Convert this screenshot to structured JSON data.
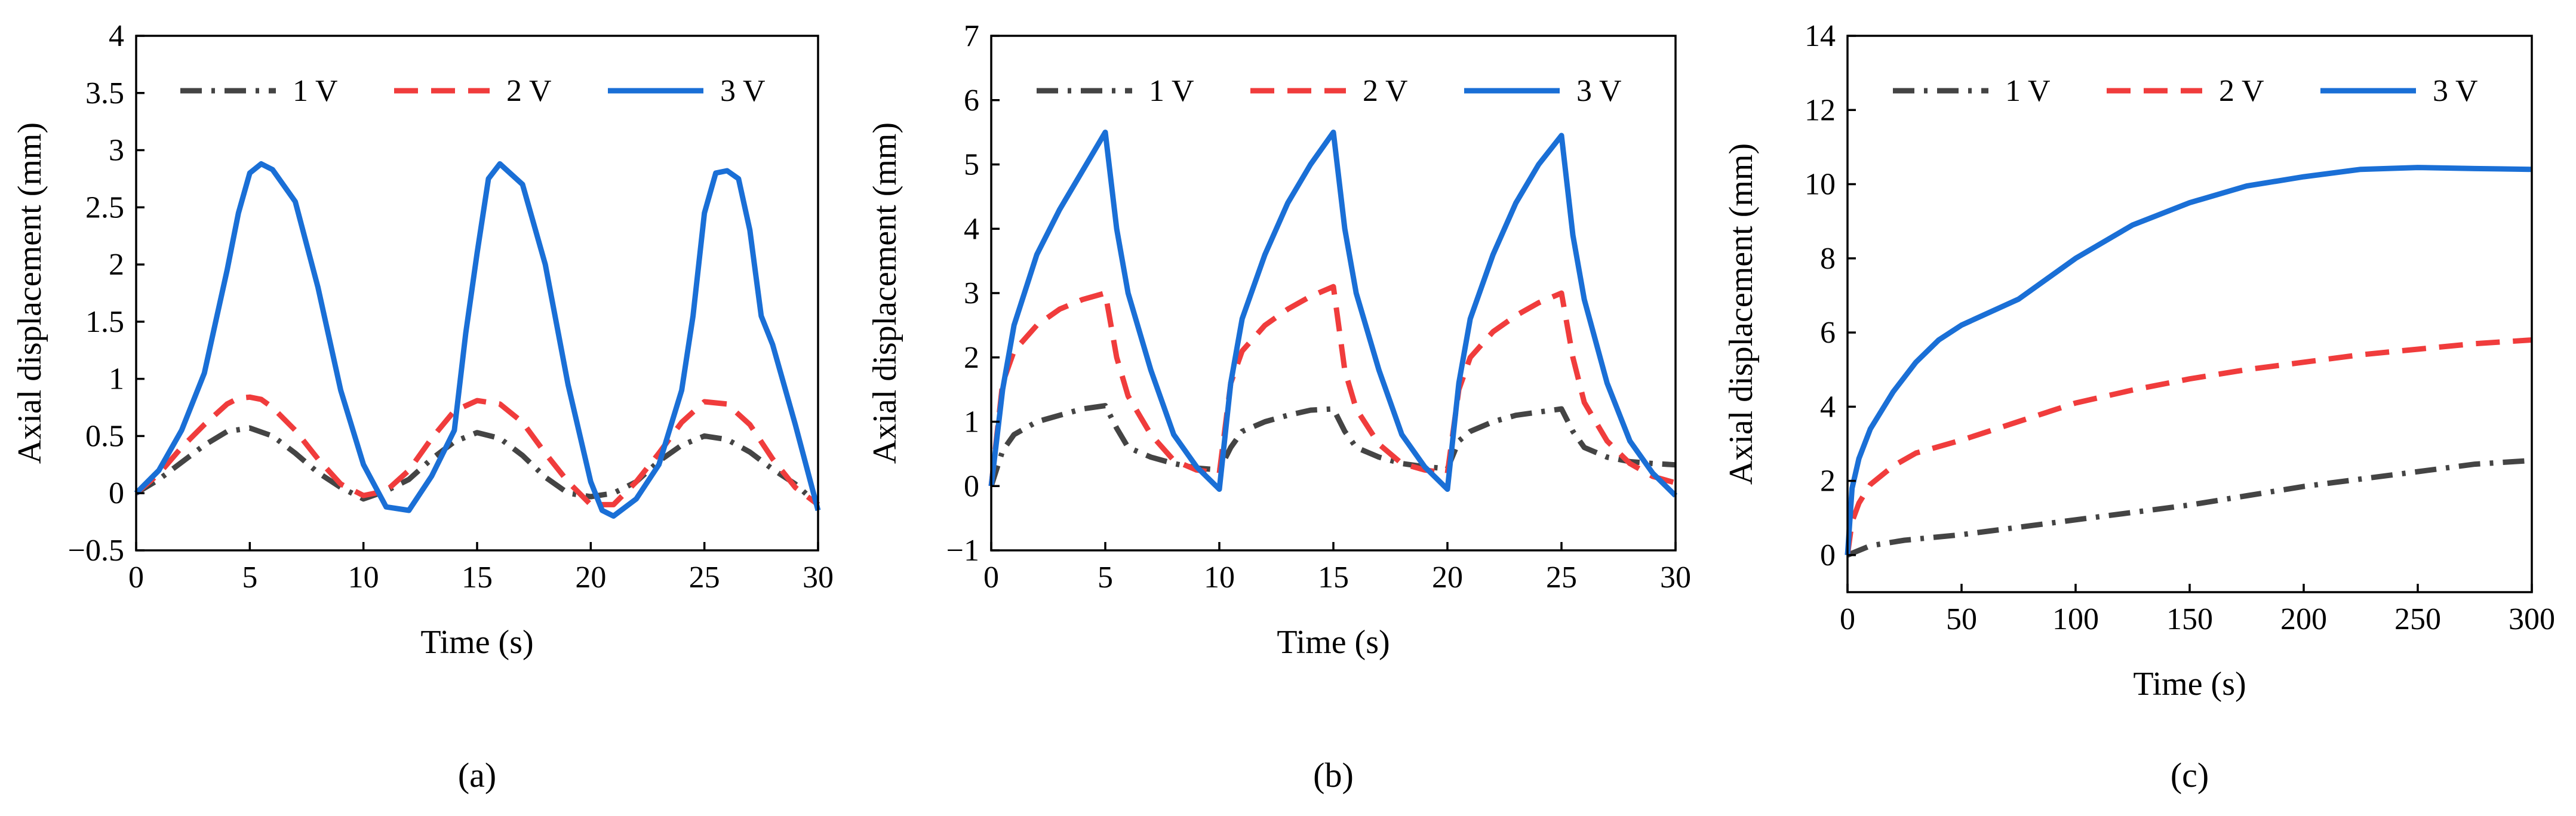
{
  "chart_data": [
    {
      "type": "line",
      "panel": "a",
      "caption": "(a)",
      "xlabel": "Time (s)",
      "ylabel": "Axial displacement (mm)",
      "xlim": [
        0,
        30
      ],
      "ylim": [
        -0.5,
        4
      ],
      "xticks": [
        0,
        5,
        10,
        15,
        20,
        25,
        30
      ],
      "yticks": [
        -0.5,
        0,
        0.5,
        1,
        1.5,
        2,
        2.5,
        3,
        3.5,
        4
      ],
      "ytick_labels": [
        "−0.5",
        "0",
        "0.5",
        "1",
        "1.5",
        "2",
        "2.5",
        "3",
        "3.5",
        "4"
      ],
      "legend": {
        "placement": "top-center",
        "entries": [
          "1 V",
          "2 V",
          "3 V"
        ]
      },
      "series": [
        {
          "name": "1 V",
          "color": "#444444",
          "style": "dashdot",
          "x": [
            0,
            1,
            2,
            3,
            4,
            5,
            6,
            7,
            8,
            9,
            10,
            11,
            12,
            13,
            14,
            15,
            16,
            17,
            18,
            19,
            20,
            21,
            22,
            23,
            24,
            25,
            26,
            27,
            28,
            29,
            30
          ],
          "y": [
            0.0,
            0.12,
            0.27,
            0.42,
            0.54,
            0.57,
            0.5,
            0.35,
            0.18,
            0.05,
            -0.05,
            0.02,
            0.12,
            0.3,
            0.45,
            0.53,
            0.48,
            0.33,
            0.14,
            0.0,
            -0.03,
            0.0,
            0.1,
            0.28,
            0.42,
            0.5,
            0.47,
            0.36,
            0.21,
            0.08,
            -0.1
          ]
        },
        {
          "name": "2 V",
          "color": "#f03c3c",
          "style": "dashed",
          "x": [
            0,
            1,
            2,
            3,
            4,
            4.5,
            5,
            5.5,
            6,
            7,
            8,
            9,
            10,
            11,
            12,
            13,
            14,
            15,
            16,
            17,
            18,
            19,
            20,
            21,
            22,
            23,
            24,
            25,
            26,
            27,
            28,
            29,
            30
          ],
          "y": [
            0.0,
            0.17,
            0.4,
            0.6,
            0.78,
            0.83,
            0.84,
            0.82,
            0.75,
            0.55,
            0.3,
            0.08,
            -0.02,
            0.02,
            0.2,
            0.48,
            0.72,
            0.81,
            0.78,
            0.62,
            0.35,
            0.1,
            -0.1,
            -0.1,
            0.1,
            0.35,
            0.62,
            0.8,
            0.78,
            0.6,
            0.3,
            0.05,
            -0.1
          ]
        },
        {
          "name": "3 V",
          "color": "#1a6fd6",
          "style": "solid",
          "x": [
            0,
            1,
            2,
            3,
            3.5,
            4,
            4.5,
            5,
            5.5,
            6,
            7,
            8,
            9,
            10,
            11,
            12,
            13,
            14,
            14.5,
            15,
            15.5,
            16,
            17,
            18,
            19,
            20,
            20.5,
            21,
            22,
            23,
            24,
            24.5,
            25,
            25.5,
            26,
            26.5,
            27,
            27.5,
            28,
            29,
            30
          ],
          "y": [
            0.0,
            0.2,
            0.55,
            1.05,
            1.5,
            1.95,
            2.45,
            2.8,
            2.88,
            2.83,
            2.55,
            1.8,
            0.9,
            0.25,
            -0.12,
            -0.15,
            0.15,
            0.55,
            1.4,
            2.1,
            2.75,
            2.88,
            2.7,
            2.0,
            0.95,
            0.1,
            -0.15,
            -0.2,
            -0.05,
            0.25,
            0.9,
            1.55,
            2.45,
            2.8,
            2.82,
            2.75,
            2.3,
            1.55,
            1.3,
            0.6,
            -0.15
          ]
        }
      ]
    },
    {
      "type": "line",
      "panel": "b",
      "caption": "(b)",
      "xlabel": "Time (s)",
      "ylabel": "Axial displacement (mm)",
      "xlim": [
        0,
        30
      ],
      "ylim": [
        -1,
        7
      ],
      "xticks": [
        0,
        5,
        10,
        15,
        20,
        25,
        30
      ],
      "yticks": [
        -1,
        0,
        1,
        2,
        3,
        4,
        5,
        6,
        7
      ],
      "ytick_labels": [
        "−1",
        "0",
        "1",
        "2",
        "3",
        "4",
        "5",
        "6",
        "7"
      ],
      "legend": {
        "placement": "top-center",
        "entries": [
          "1 V",
          "2 V",
          "3 V"
        ]
      },
      "series": [
        {
          "name": "1 V",
          "color": "#444444",
          "style": "dashdot",
          "x": [
            0,
            0.5,
            1,
            2,
            3,
            4,
            5,
            5.5,
            6,
            7,
            8,
            9,
            10,
            10.5,
            11,
            12,
            13,
            14,
            15,
            15.5,
            16,
            17,
            18,
            19,
            20,
            20.5,
            21,
            22,
            23,
            24,
            25,
            25.5,
            26,
            27,
            28,
            29,
            30
          ],
          "y": [
            0.0,
            0.55,
            0.8,
            1.0,
            1.1,
            1.2,
            1.25,
            0.9,
            0.6,
            0.45,
            0.35,
            0.28,
            0.25,
            0.6,
            0.85,
            1.0,
            1.1,
            1.18,
            1.2,
            0.85,
            0.6,
            0.45,
            0.35,
            0.3,
            0.27,
            0.7,
            0.85,
            1.0,
            1.1,
            1.15,
            1.2,
            0.85,
            0.6,
            0.45,
            0.38,
            0.35,
            0.33
          ]
        },
        {
          "name": "2 V",
          "color": "#f03c3c",
          "style": "dashed",
          "x": [
            0,
            0.5,
            1,
            2,
            3,
            4,
            5,
            5.5,
            6,
            7,
            8,
            9,
            10,
            10.5,
            11,
            12,
            13,
            14,
            15,
            15.5,
            16,
            17,
            18,
            19,
            20,
            20.5,
            21,
            22,
            23,
            24,
            25,
            25.5,
            26,
            27,
            28,
            29,
            30
          ],
          "y": [
            0.0,
            1.6,
            2.1,
            2.5,
            2.75,
            2.9,
            3.0,
            2.0,
            1.4,
            0.8,
            0.4,
            0.25,
            0.2,
            1.6,
            2.1,
            2.5,
            2.75,
            2.95,
            3.1,
            1.8,
            1.2,
            0.65,
            0.35,
            0.25,
            0.2,
            1.5,
            2.0,
            2.4,
            2.65,
            2.85,
            3.0,
            2.0,
            1.3,
            0.7,
            0.35,
            0.15,
            0.05
          ]
        },
        {
          "name": "3 V",
          "color": "#1a6fd6",
          "style": "solid",
          "x": [
            0,
            0.5,
            1,
            2,
            3,
            4,
            5,
            5.5,
            6,
            7,
            8,
            9,
            10,
            10.5,
            11,
            12,
            13,
            14,
            15,
            15.5,
            16,
            17,
            18,
            19,
            20,
            20.5,
            21,
            22,
            23,
            24,
            25,
            25.5,
            26,
            27,
            28,
            29,
            30
          ],
          "y": [
            0.0,
            1.5,
            2.5,
            3.6,
            4.3,
            4.9,
            5.5,
            4.0,
            3.0,
            1.8,
            0.8,
            0.3,
            -0.05,
            1.6,
            2.6,
            3.6,
            4.4,
            5.0,
            5.5,
            4.0,
            3.0,
            1.8,
            0.8,
            0.3,
            -0.05,
            1.6,
            2.6,
            3.6,
            4.4,
            5.0,
            5.45,
            3.9,
            2.9,
            1.6,
            0.7,
            0.2,
            -0.15
          ]
        }
      ]
    },
    {
      "type": "line",
      "panel": "c",
      "caption": "(c)",
      "xlabel": "Time (s)",
      "ylabel": "Axial displacement (mm)",
      "xlim": [
        0,
        300
      ],
      "ylim": [
        -1,
        14
      ],
      "xticks": [
        0,
        50,
        100,
        150,
        200,
        250,
        300
      ],
      "yticks": [
        0,
        2,
        4,
        6,
        8,
        10,
        12,
        14
      ],
      "ytick_labels": [
        "0",
        "2",
        "4",
        "6",
        "8",
        "10",
        "12",
        "14"
      ],
      "legend": {
        "placement": "top-center",
        "entries": [
          "1 V",
          "2 V",
          "3 V"
        ]
      },
      "series": [
        {
          "name": "1 V",
          "color": "#444444",
          "style": "dashdot",
          "x": [
            0,
            10,
            25,
            50,
            75,
            100,
            125,
            150,
            175,
            200,
            225,
            250,
            275,
            300
          ],
          "y": [
            0.0,
            0.25,
            0.4,
            0.55,
            0.75,
            0.95,
            1.15,
            1.35,
            1.6,
            1.85,
            2.05,
            2.25,
            2.45,
            2.55
          ]
        },
        {
          "name": "2 V",
          "color": "#f03c3c",
          "style": "dashed",
          "x": [
            0,
            2,
            5,
            10,
            20,
            30,
            50,
            75,
            100,
            125,
            150,
            175,
            200,
            225,
            250,
            275,
            300
          ],
          "y": [
            0.0,
            0.9,
            1.4,
            1.9,
            2.4,
            2.75,
            3.1,
            3.6,
            4.1,
            4.45,
            4.75,
            5.0,
            5.2,
            5.4,
            5.55,
            5.7,
            5.8
          ]
        },
        {
          "name": "3 V",
          "color": "#1a6fd6",
          "style": "solid",
          "x": [
            0,
            2,
            5,
            10,
            20,
            30,
            40,
            50,
            75,
            100,
            125,
            150,
            175,
            200,
            225,
            250,
            275,
            300
          ],
          "y": [
            0.0,
            1.8,
            2.6,
            3.4,
            4.4,
            5.2,
            5.8,
            6.2,
            6.9,
            8.0,
            8.9,
            9.5,
            9.95,
            10.2,
            10.4,
            10.45,
            10.42,
            10.4
          ]
        }
      ]
    }
  ]
}
